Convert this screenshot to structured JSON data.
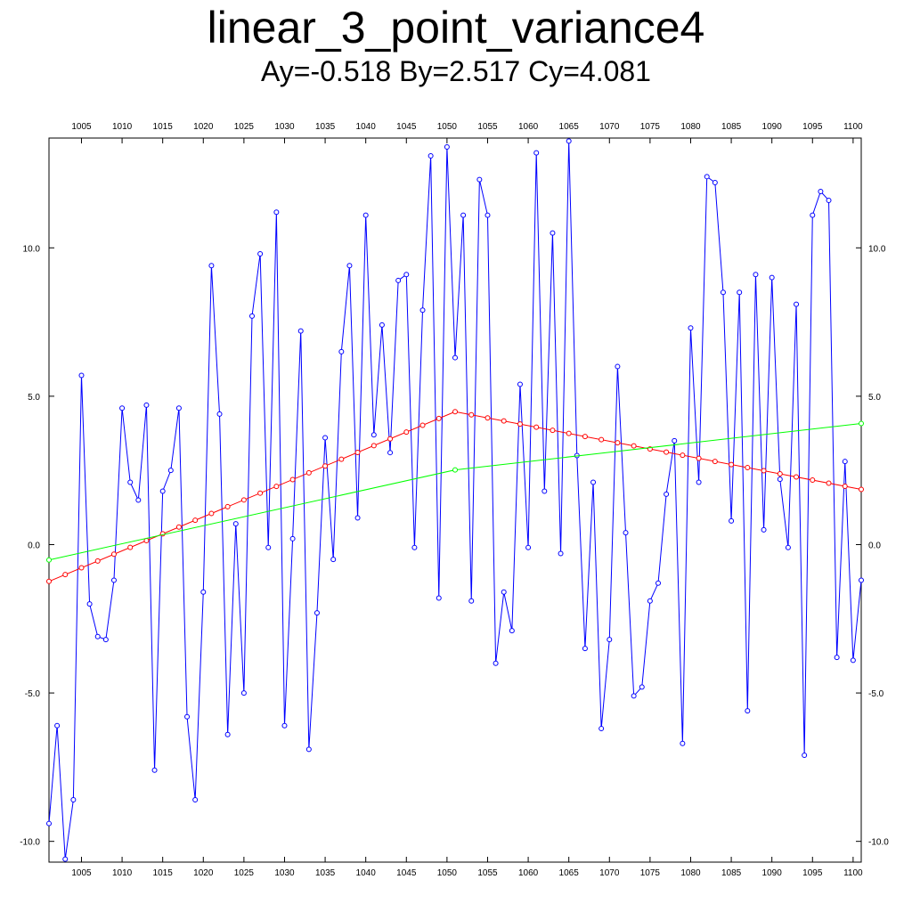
{
  "chart_data": {
    "type": "line",
    "title": "linear_3_point_variance4",
    "subtitle": "Ay=-0.518 By=2.517 Cy=4.081",
    "xlim": [
      1001,
      1101
    ],
    "ylim": [
      -10.7,
      13.7
    ],
    "x_ticks": [
      1005,
      1010,
      1015,
      1020,
      1025,
      1030,
      1035,
      1040,
      1045,
      1050,
      1055,
      1060,
      1065,
      1070,
      1075,
      1080,
      1085,
      1090,
      1095,
      1100
    ],
    "x_tick_labels": [
      "1005",
      "1010",
      "1015",
      "1020",
      "1025",
      "1030",
      "1035",
      "1040",
      "1045",
      "1050",
      "1055",
      "1060",
      "1065",
      "1070",
      "1075",
      "1080",
      "1085",
      "1090",
      "1095",
      "1100"
    ],
    "y_ticks": [
      -10,
      -5,
      0,
      5,
      10
    ],
    "y_tick_labels": [
      "-10.0",
      "-5.0",
      "0.0",
      "5.0",
      "10.0"
    ],
    "grid": false,
    "x_start": 1001,
    "series": [
      {
        "color": "#0000ff",
        "marker": "circle",
        "x": [
          1001,
          1002,
          1003,
          1004,
          1005,
          1006,
          1007,
          1008,
          1009,
          1010,
          1011,
          1012,
          1013,
          1014,
          1015,
          1016,
          1017,
          1018,
          1019,
          1020,
          1021,
          1022,
          1023,
          1024,
          1025,
          1026,
          1027,
          1028,
          1029,
          1030,
          1031,
          1032,
          1033,
          1034,
          1035,
          1036,
          1037,
          1038,
          1039,
          1040,
          1041,
          1042,
          1043,
          1044,
          1045,
          1046,
          1047,
          1048,
          1049,
          1050,
          1051,
          1052,
          1053,
          1054,
          1055,
          1056,
          1057,
          1058,
          1059,
          1060,
          1061,
          1062,
          1063,
          1064,
          1065,
          1066,
          1067,
          1068,
          1069,
          1070,
          1071,
          1072,
          1073,
          1074,
          1075,
          1076,
          1077,
          1078,
          1079,
          1080,
          1081,
          1082,
          1083,
          1084,
          1085,
          1086,
          1087,
          1088,
          1089,
          1090,
          1091,
          1092,
          1093,
          1094,
          1095,
          1096,
          1097,
          1098,
          1099,
          1100,
          1101
        ],
        "y": [
          -9.4,
          -6.1,
          -10.6,
          -8.6,
          5.7,
          -2.0,
          -3.1,
          -3.2,
          -1.2,
          4.6,
          2.1,
          1.5,
          4.7,
          -7.6,
          1.8,
          2.5,
          4.6,
          -5.8,
          -8.6,
          -1.6,
          9.4,
          4.4,
          -6.4,
          0.7,
          -5.0,
          7.7,
          9.8,
          -0.1,
          11.2,
          -6.1,
          0.2,
          7.2,
          -6.9,
          -2.3,
          3.6,
          -0.5,
          6.5,
          9.4,
          0.9,
          11.1,
          3.7,
          7.4,
          3.1,
          8.9,
          9.1,
          -0.1,
          7.9,
          13.1,
          -1.8,
          13.4,
          6.3,
          11.1,
          -1.9,
          12.3,
          11.1,
          -4.0,
          -1.6,
          -2.9,
          5.4,
          -0.1,
          13.2,
          1.8,
          10.5,
          -0.3,
          13.6,
          3.0,
          -3.5,
          2.1,
          -6.2,
          -3.2,
          6.0,
          0.4,
          -5.1,
          -4.8,
          -1.9,
          -1.3,
          1.7,
          3.5,
          -6.7,
          7.3,
          2.1,
          12.4,
          12.2,
          8.5,
          0.8,
          8.5,
          -5.6,
          9.1,
          0.5,
          9.0,
          2.2,
          -0.1,
          8.1,
          -7.1,
          11.1,
          11.9,
          11.6,
          -3.8,
          2.8,
          -3.9,
          -1.2
        ]
      },
      {
        "color": "#ff0000",
        "marker": "circle",
        "x": [
          1001,
          1051,
          1101
        ],
        "y": [
          -1.24,
          4.48,
          1.86
        ]
      },
      {
        "color": "#00ff00",
        "marker": "circle",
        "x": [
          1001,
          1051,
          1101
        ],
        "y": [
          -0.518,
          2.517,
          4.081
        ]
      }
    ]
  }
}
